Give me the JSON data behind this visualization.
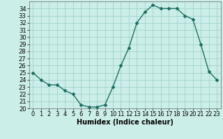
{
  "x": [
    0,
    1,
    2,
    3,
    4,
    5,
    6,
    7,
    8,
    9,
    10,
    11,
    12,
    13,
    14,
    15,
    16,
    17,
    18,
    19,
    20,
    21,
    22,
    23
  ],
  "y": [
    25.0,
    24.0,
    23.3,
    23.3,
    22.5,
    22.0,
    20.5,
    20.2,
    20.2,
    20.5,
    23.0,
    26.0,
    28.5,
    32.0,
    33.5,
    34.5,
    34.0,
    34.0,
    34.0,
    33.0,
    32.5,
    29.0,
    25.2,
    24.0
  ],
  "xlabel": "Humidex (Indice chaleur)",
  "xlim": [
    -0.5,
    23.5
  ],
  "ylim": [
    20,
    35
  ],
  "yticks": [
    20,
    21,
    22,
    23,
    24,
    25,
    26,
    27,
    28,
    29,
    30,
    31,
    32,
    33,
    34
  ],
  "xticks": [
    0,
    1,
    2,
    3,
    4,
    5,
    6,
    7,
    8,
    9,
    10,
    11,
    12,
    13,
    14,
    15,
    16,
    17,
    18,
    19,
    20,
    21,
    22,
    23
  ],
  "line_color": "#1a7060",
  "marker": "D",
  "marker_size": 2,
  "bg_color": "#cceee8",
  "grid_color": "#99cccc",
  "xlabel_fontsize": 7,
  "tick_fontsize": 6,
  "linewidth": 1.0
}
